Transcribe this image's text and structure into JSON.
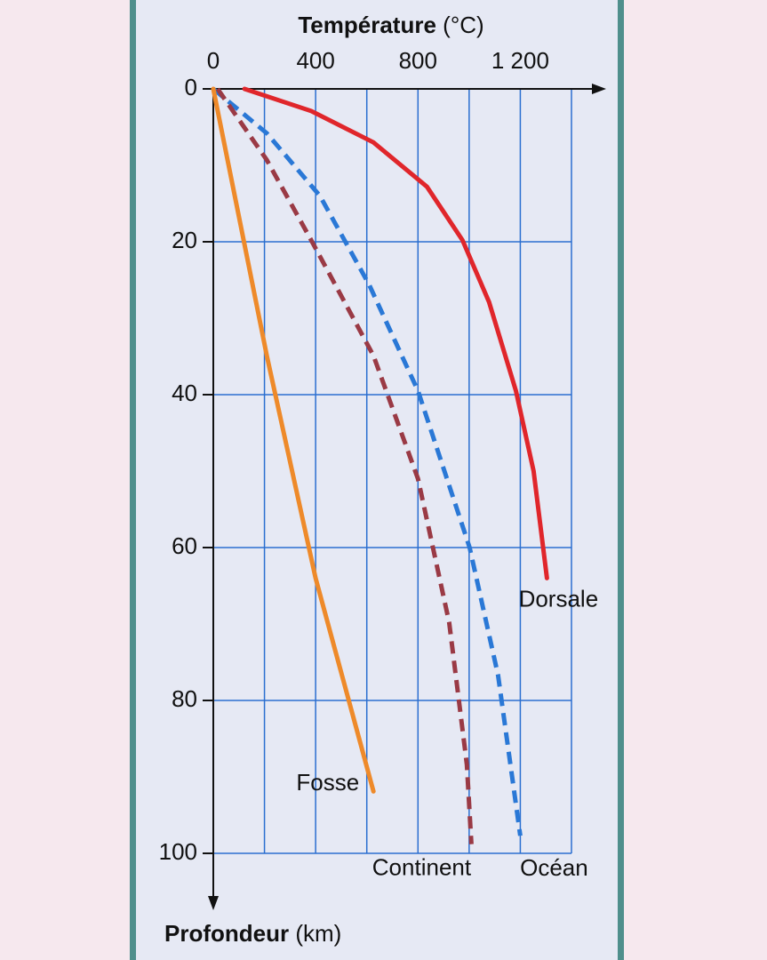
{
  "chart_data": {
    "type": "line",
    "xlabel": "Température",
    "xlabel_unit": "(°C)",
    "ylabel": "Profondeur",
    "ylabel_unit": "(km)",
    "xlim": [
      0,
      1400
    ],
    "xticks": [
      0,
      400,
      800,
      {
        "value": 1200,
        "label": "1 200"
      }
    ],
    "xminor": [
      200,
      600,
      1000,
      1400
    ],
    "ylim": [
      0,
      100
    ],
    "yticks": [
      0,
      20,
      40,
      60,
      80,
      100
    ],
    "y_inverted": true,
    "x_axis_top": true,
    "grid": true,
    "series": [
      {
        "name": "Dorsale",
        "color": "#e0262b",
        "dash": false,
        "x": [
          122,
          383,
          626,
          835,
          974,
          1078,
          1183,
          1252,
          1304
        ],
        "values": [
          0,
          2.9,
          7,
          12.8,
          19.8,
          27.9,
          39.5,
          50,
          64
        ]
      },
      {
        "name": "Océan",
        "color": "#2a78d6",
        "dash": true,
        "x": [
          0,
          209,
          417,
          609,
          800,
          1002,
          1113,
          1200
        ],
        "values": [
          0,
          5.8,
          14,
          25.6,
          39.5,
          60,
          76.7,
          97.7
        ]
      },
      {
        "name": "Continent",
        "color": "#9a3a45",
        "dash": true,
        "x": [
          17,
          209,
          383,
          626,
          800,
          922,
          991,
          1009
        ],
        "values": [
          0,
          9.3,
          19.8,
          34.9,
          51,
          69.8,
          88.4,
          98.8
        ]
      },
      {
        "name": "Fosse",
        "color": "#ee8a2a",
        "dash": false,
        "x": [
          0,
          209,
          400,
          626
        ],
        "values": [
          0,
          34.9,
          64,
          91.9
        ]
      }
    ]
  }
}
